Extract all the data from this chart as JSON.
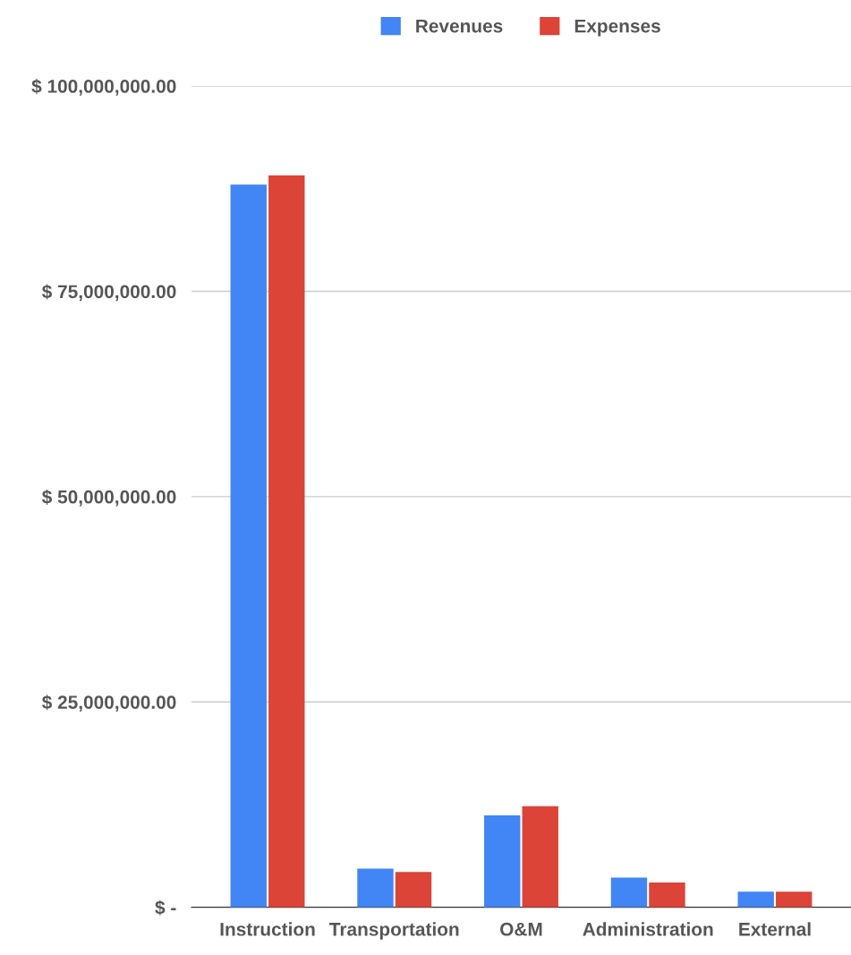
{
  "chart_data": {
    "type": "bar",
    "categories": [
      "Instruction",
      "Transportation",
      "O&M",
      "Administration",
      "External"
    ],
    "series": [
      {
        "name": "Revenues",
        "color": "#4285f4",
        "values": [
          88000000,
          4700000,
          11200000,
          3600000,
          1900000
        ]
      },
      {
        "name": "Expenses",
        "color": "#db4437",
        "values": [
          89100000,
          4300000,
          12300000,
          3000000,
          1900000
        ]
      }
    ],
    "ylim": [
      0,
      100000000
    ],
    "yticks": [
      {
        "value": 0,
        "label": "$ -"
      },
      {
        "value": 25000000,
        "label": "$ 25,000,000.00"
      },
      {
        "value": 50000000,
        "label": "$ 50,000,000.00"
      },
      {
        "value": 75000000,
        "label": "$ 75,000,000.00"
      },
      {
        "value": 100000000,
        "label": "$ 100,000,000.00"
      }
    ],
    "grid": "y",
    "legend": "top"
  }
}
